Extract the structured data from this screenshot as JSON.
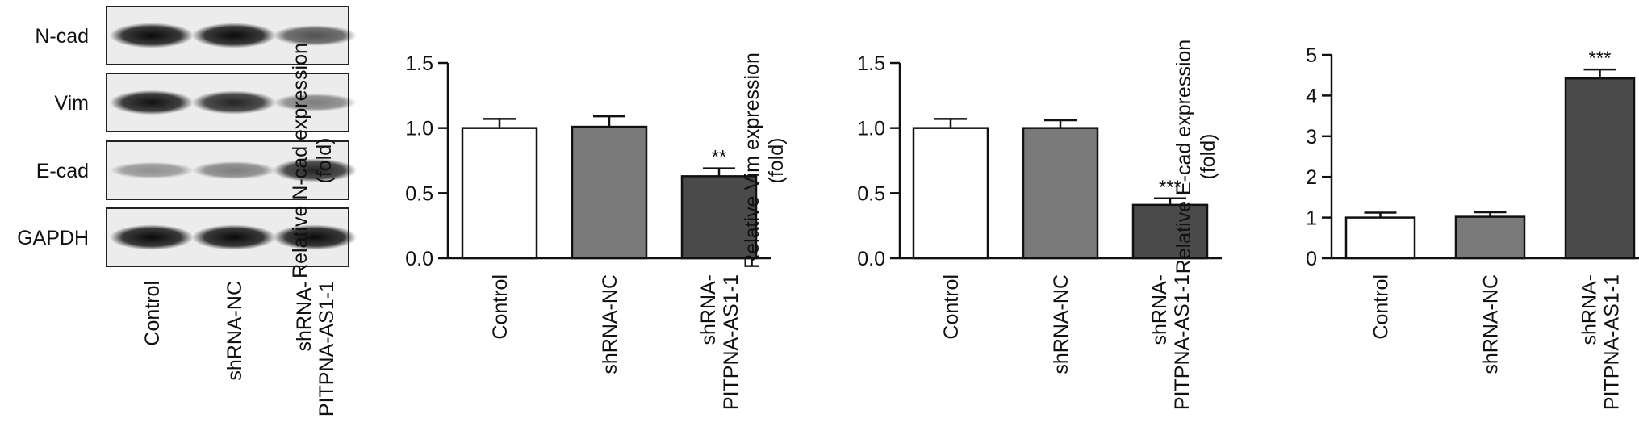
{
  "blot": {
    "rows": [
      {
        "label": "N-cad",
        "intensity": [
          0.95,
          0.95,
          0.55
        ]
      },
      {
        "label": "Vim",
        "intensity": [
          0.9,
          0.8,
          0.3
        ]
      },
      {
        "label": "E-cad",
        "intensity": [
          0.18,
          0.3,
          0.8
        ]
      },
      {
        "label": "GAPDH",
        "intensity": [
          0.95,
          0.95,
          0.95
        ]
      }
    ],
    "lanes": [
      "Control",
      "shRNA-NC",
      "shRNA-PITPNA-AS1-1"
    ]
  },
  "chart_data": [
    {
      "type": "bar",
      "categories": [
        "Control",
        "shRNA-NC",
        "shRNA-PITPNA-AS1-1"
      ],
      "values": [
        1.0,
        1.01,
        0.63
      ],
      "errors": [
        0.07,
        0.08,
        0.06
      ],
      "significance": [
        "",
        "",
        "**"
      ],
      "ylabel": "Relative N-cad expression (fold)",
      "ylim": [
        0,
        1.5
      ],
      "yticks": [
        "0.0",
        "0.5",
        "1.0",
        "1.5"
      ],
      "bar_colors": [
        "#ffffff",
        "#7a7a7a",
        "#4a4a4a"
      ]
    },
    {
      "type": "bar",
      "categories": [
        "Control",
        "shRNA-NC",
        "shRNA-PITPNA-AS1-1"
      ],
      "values": [
        1.0,
        1.0,
        0.41
      ],
      "errors": [
        0.07,
        0.06,
        0.05
      ],
      "significance": [
        "",
        "",
        "***"
      ],
      "ylabel": "Relative Vim expression (fold)",
      "ylim": [
        0,
        1.5
      ],
      "yticks": [
        "0.0",
        "0.5",
        "1.0",
        "1.5"
      ],
      "bar_colors": [
        "#ffffff",
        "#7a7a7a",
        "#4a4a4a"
      ]
    },
    {
      "type": "bar",
      "categories": [
        "Control",
        "shRNA-NC",
        "shRNA-PITPNA-AS1-1"
      ],
      "values": [
        1.0,
        1.02,
        4.42
      ],
      "errors": [
        0.12,
        0.11,
        0.22
      ],
      "significance": [
        "",
        "",
        "***"
      ],
      "ylabel": "Relative E-cad expression (fold)",
      "ylim": [
        0,
        5
      ],
      "yticks": [
        "0",
        "1",
        "2",
        "3",
        "4",
        "5"
      ],
      "bar_colors": [
        "#ffffff",
        "#7a7a7a",
        "#4a4a4a"
      ]
    }
  ]
}
